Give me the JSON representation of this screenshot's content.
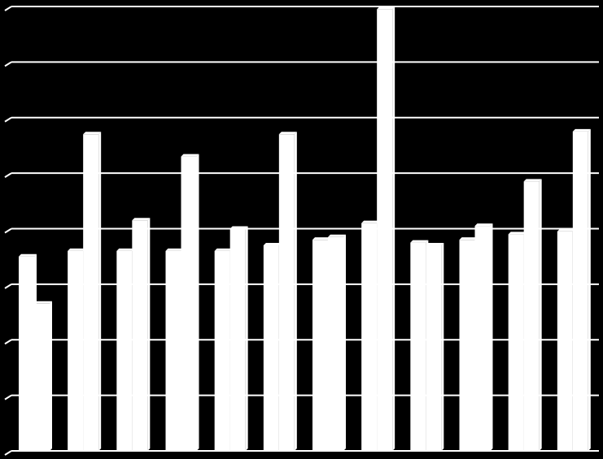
{
  "chart_data": {
    "type": "bar",
    "title": "",
    "xlabel": "",
    "ylabel": "",
    "ylim": [
      0,
      8
    ],
    "grid": true,
    "legend": "none",
    "categories": [
      "",
      "",
      "",
      "",
      "",
      "",
      "",
      "",
      "",
      "",
      "",
      ""
    ],
    "series": [
      {
        "values": [
          3.5,
          3.6,
          3.6,
          3.6,
          3.6,
          3.7,
          3.8,
          4.1,
          3.75,
          3.8,
          3.9,
          3.95
        ]
      },
      {
        "values": [
          2.65,
          5.7,
          4.15,
          5.3,
          4.0,
          5.7,
          3.85,
          7.95,
          3.7,
          4.05,
          4.85,
          5.75
        ]
      }
    ],
    "colors": {
      "background": "#000000",
      "bars": "#ffffff",
      "grid": "#ffffff"
    }
  }
}
